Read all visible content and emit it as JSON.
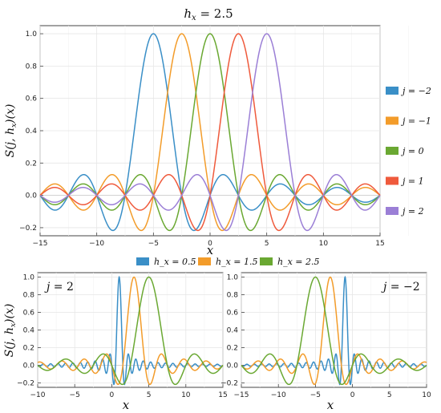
{
  "chart_data": [
    {
      "type": "line",
      "title": "h_x = 2.5",
      "xlabel": "x",
      "ylabel": "S(j, h_x)(x)",
      "xlim": [
        -15,
        15
      ],
      "ylim": [
        -0.25,
        1.05
      ],
      "x_ticks": [
        -15,
        -10,
        -5,
        0,
        5,
        10,
        15
      ],
      "y_ticks": [
        -0.2,
        0.0,
        0.2,
        0.4,
        0.6,
        0.8,
        1.0
      ],
      "grid": true,
      "legend_position": "right",
      "function": "sin(pi*(x - j*h)/h) / (pi*(x - j*h)/h)",
      "h": 2.5,
      "series": [
        {
          "name": "j = −2",
          "j": -2,
          "color": "#3a8fc7"
        },
        {
          "name": "j = −1",
          "j": -1,
          "color": "#f39c2a"
        },
        {
          "name": "j = 0",
          "j": 0,
          "color": "#6aa832"
        },
        {
          "name": "j = 1",
          "j": 1,
          "color": "#ef5a3c"
        },
        {
          "name": "j = 2",
          "j": 2,
          "color": "#9b7fd6"
        }
      ]
    },
    {
      "type": "line",
      "title": "j = 2",
      "xlabel": "x",
      "ylabel": "S(j, h_x)(x)",
      "xlim": [
        -10,
        15
      ],
      "ylim": [
        -0.25,
        1.05
      ],
      "x_ticks": [
        -10,
        -5,
        0,
        5,
        10,
        15
      ],
      "y_ticks": [
        -0.2,
        0.0,
        0.2,
        0.4,
        0.6,
        0.8,
        1.0
      ],
      "grid": true,
      "function": "sin(pi*(x - j*h)/h) / (pi*(x - j*h)/h)",
      "j": 2,
      "series": [
        {
          "name": "h_x = 0.5",
          "h": 0.5,
          "color": "#3a8fc7"
        },
        {
          "name": "h_x = 1.5",
          "h": 1.5,
          "color": "#f39c2a"
        },
        {
          "name": "h_x = 2.5",
          "h": 2.5,
          "color": "#6aa832"
        }
      ]
    },
    {
      "type": "line",
      "title": "j = −2",
      "xlabel": "x",
      "ylabel": "",
      "xlim": [
        -15,
        10
      ],
      "ylim": [
        -0.25,
        1.05
      ],
      "x_ticks": [
        -15,
        -10,
        -5,
        0,
        5,
        10
      ],
      "y_ticks": [
        -0.2,
        0.0,
        0.2,
        0.4,
        0.6,
        0.8,
        1.0
      ],
      "grid": true,
      "function": "sin(pi*(x - j*h)/h) / (pi*(x - j*h)/h)",
      "j": -2,
      "series": [
        {
          "name": "h_x = 0.5",
          "h": 0.5,
          "color": "#3a8fc7"
        },
        {
          "name": "h_x = 1.5",
          "h": 1.5,
          "color": "#f39c2a"
        },
        {
          "name": "h_x = 2.5",
          "h": 2.5,
          "color": "#6aa832"
        }
      ]
    }
  ],
  "bottom_legend": [
    {
      "name": "h_x = 0.5",
      "color": "#3a8fc7"
    },
    {
      "name": "h_x = 1.5",
      "color": "#f39c2a"
    },
    {
      "name": "h_x = 2.5",
      "color": "#6aa832"
    }
  ]
}
